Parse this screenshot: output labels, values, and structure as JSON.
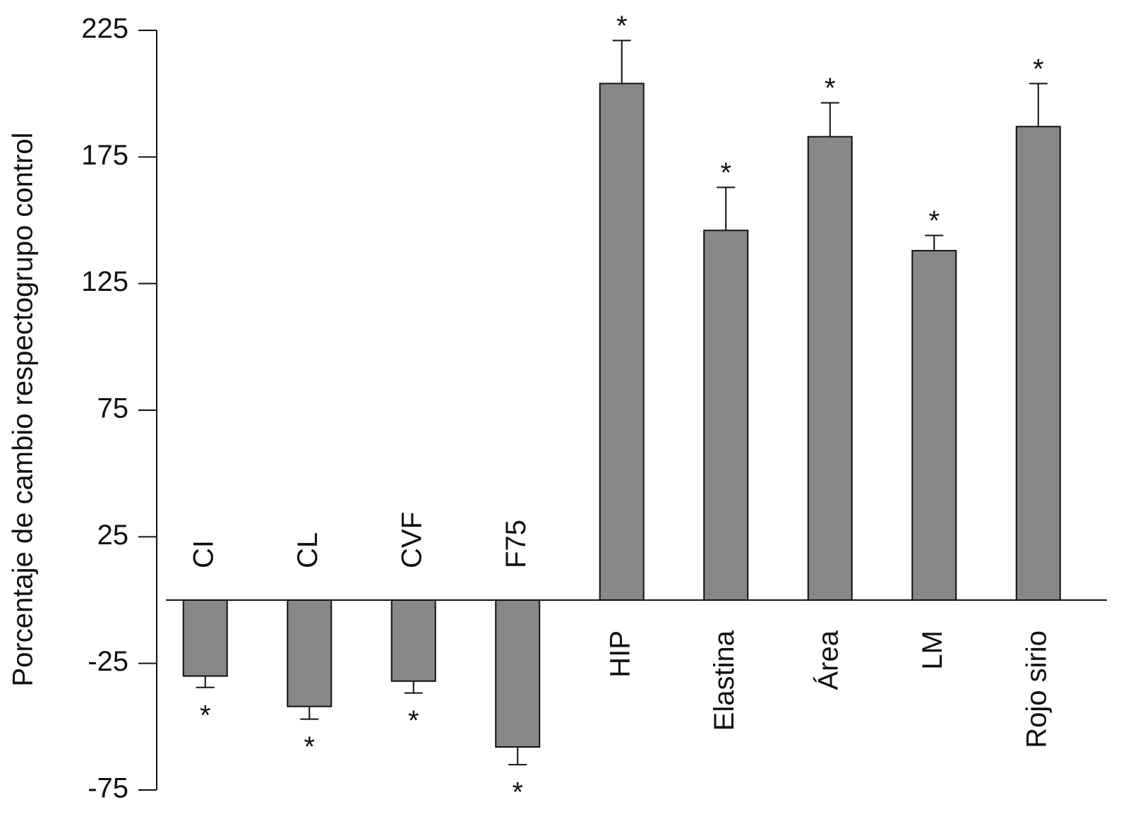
{
  "chart_data": {
    "type": "bar",
    "y_label": "Porcentaje de cambio respectogrupo control",
    "categories": [
      "CI",
      "CL",
      "CVF",
      "F75",
      "HIP",
      "Elastina",
      "Área",
      "LM",
      "Rojo sirio"
    ],
    "values": [
      -30,
      -42,
      -32,
      -58,
      204,
      146,
      183,
      138,
      187
    ],
    "errors": [
      4.5,
      5,
      4.7,
      7,
      17,
      17,
      13.4,
      6,
      17
    ],
    "significance": [
      "*",
      "*",
      "*",
      "*",
      "*",
      "*",
      "*",
      "*",
      "*"
    ],
    "color": "#878787",
    "ylim": [
      -75,
      225
    ],
    "yticks": [
      -75,
      -25,
      25,
      75,
      125,
      175,
      225
    ]
  }
}
